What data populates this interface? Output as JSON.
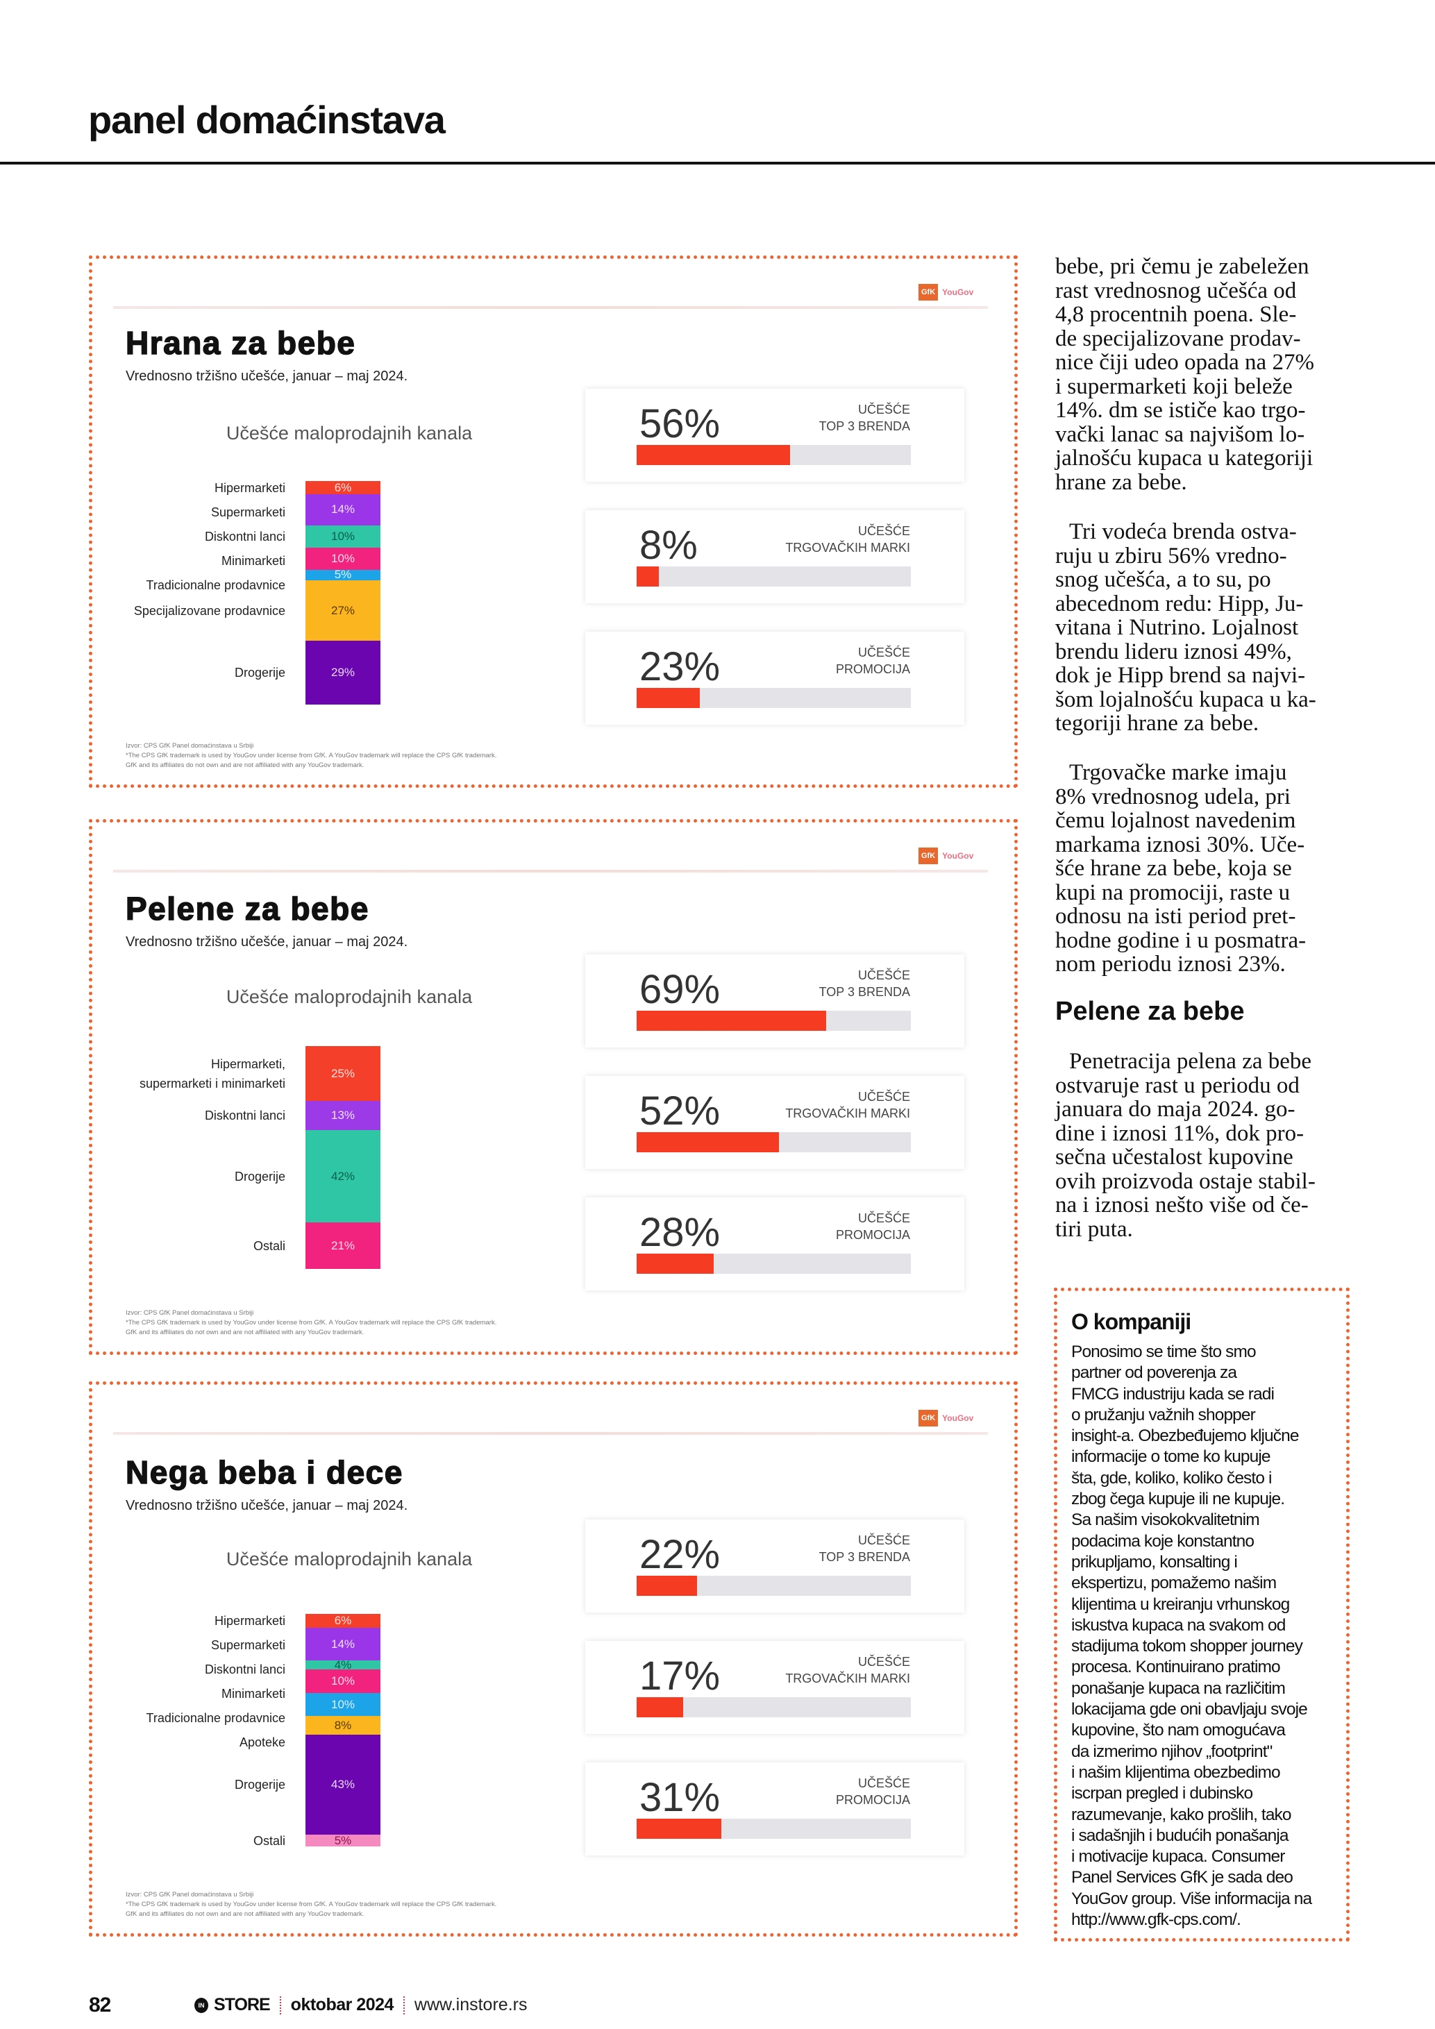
{
  "header": {
    "section_title": "panel domaćinstava"
  },
  "logo": {
    "gfk": "GfK",
    "yougov": "YouGov"
  },
  "colors": {
    "accent_orange": "#ef6330",
    "kpi_fill": "#f53c22",
    "kpi_track": "#e4e4e8"
  },
  "chart_data": [
    {
      "type": "bar",
      "stacked": true,
      "title": "Hrana za bebe",
      "subtitle": "Vrednosno tržišno učešće, januar – maj 2024.",
      "chart_title": "Učešće maloprodajnih kanala",
      "categories": [
        "Hipermarketi",
        "Supermarketi",
        "Diskontni lanci",
        "Minimarketi",
        "Tradicionalne prodavnice",
        "Specijalizovane prodavnice",
        "Drogerije"
      ],
      "values": [
        6,
        14,
        10,
        10,
        5,
        27,
        29
      ],
      "unit": "%",
      "colors": [
        "#f4402a",
        "#9a36e8",
        "#2fc6a6",
        "#f2237e",
        "#1ca3e8",
        "#fbb51f",
        "#6a05b0"
      ],
      "kpis": [
        {
          "value": 56,
          "label": [
            "UČEŠĆE",
            "TOP 3 BRENDA"
          ]
        },
        {
          "value": 8,
          "label": [
            "UČEŠĆE",
            "TRGOVAČKIH MARKI"
          ]
        },
        {
          "value": 23,
          "label": [
            "UČEŠĆE",
            "PROMOCIJA"
          ]
        }
      ],
      "footnotes": [
        "Izvor: CPS GfK Panel domaćinstava u Srbiji",
        "*The CPS GfK trademark is used by YouGov under license from GfK. A YouGov trademark will replace the CPS GfK trademark.",
        "GfK and its affiliates do not own and are not affiliated with any YouGov trademark."
      ]
    },
    {
      "type": "bar",
      "stacked": true,
      "title": "Pelene za bebe",
      "subtitle": "Vrednosno tržišno učešće, januar – maj 2024.",
      "chart_title": "Učešće maloprodajnih kanala",
      "categories": [
        "Hipermarketi,\nsupermarketi i minimarketi",
        "Diskontni lanci",
        "Drogerije",
        "Ostali"
      ],
      "values": [
        25,
        13,
        42,
        21
      ],
      "unit": "%",
      "colors": [
        "#f4402a",
        "#9b3ae6",
        "#2fc6a6",
        "#f2237e"
      ],
      "kpis": [
        {
          "value": 69,
          "label": [
            "UČEŠĆE",
            "TOP 3 BRENDA"
          ]
        },
        {
          "value": 52,
          "label": [
            "UČEŠĆE",
            "TRGOVAČKIH MARKI"
          ]
        },
        {
          "value": 28,
          "label": [
            "UČEŠĆE",
            "PROMOCIJA"
          ]
        }
      ],
      "footnotes": [
        "Izvor: CPS GfK Panel domaćinstava u Srbiji",
        "*The CPS GfK trademark is used by YouGov under license from GfK. A YouGov trademark will replace the CPS GfK trademark.",
        "GfK and its affiliates do not own and are not affiliated with any YouGov trademark."
      ]
    },
    {
      "type": "bar",
      "stacked": true,
      "title": "Nega beba i dece",
      "subtitle": "Vrednosno tržišno učešće, januar – maj 2024.",
      "chart_title": "Učešće maloprodajnih kanala",
      "categories": [
        "Hipermarketi",
        "Supermarketi",
        "Diskontni lanci",
        "Minimarketi",
        "Tradicionalne prodavnice",
        "Apoteke",
        "Drogerije",
        "Ostali"
      ],
      "values": [
        6,
        14,
        4,
        10,
        10,
        8,
        43,
        5
      ],
      "unit": "%",
      "colors": [
        "#f4402a",
        "#9a36e8",
        "#2fc6a6",
        "#f2237e",
        "#1ca3e8",
        "#fbb51f",
        "#6a05b0",
        "#f58ac0"
      ],
      "kpis": [
        {
          "value": 22,
          "label": [
            "UČEŠĆE",
            "TOP 3 BRENDA"
          ]
        },
        {
          "value": 17,
          "label": [
            "UČEŠĆE",
            "TRGOVAČKIH MARKI"
          ]
        },
        {
          "value": 31,
          "label": [
            "UČEŠĆE",
            "PROMOCIJA"
          ]
        }
      ],
      "footnotes": [
        "Izvor: CPS GfK Panel domaćinstava u Srbiji",
        "*The CPS GfK trademark is used by YouGov under license from GfK. A YouGov trademark will replace the CPS GfK trademark.",
        "GfK and its affiliates do not own and are not affiliated with any YouGov trademark."
      ]
    }
  ],
  "article": {
    "paragraphs": [
      [
        "bebe, pri čemu je zabeležen",
        "rast vrednosnog učešća od",
        "4,8 procentnih poena. Sle-",
        "de specijalizovane prodav-",
        "nice čiji udeo opada na 27%",
        "i supermarketi koji beleže",
        "14%. dm se ističe kao trgo-",
        "vački lanac sa najvišom lo-",
        "jalnošću kupaca u kategoriji",
        "hrane za bebe."
      ],
      [
        "Tri vodeća brenda ostva-",
        "ruju u zbiru 56% vredno-",
        "snog učešća, a to su, po",
        "abecednom redu: Hipp, Ju-",
        "vitana i Nutrino. Lojalnost",
        "brendu lideru iznosi 49%,",
        "dok je Hipp brend sa najvi-",
        "šom lojalnošću kupaca u ka-",
        "tegoriji hrane za bebe."
      ],
      [
        "Trgovačke marke imaju",
        "8% vrednosnog udela, pri",
        "čemu lojalnost navedenim",
        "markama iznosi 30%. Uče-",
        "šće hrane za bebe, koja se",
        "kupi na promociji, raste u",
        "odnosu na isti period pret-",
        "hodne godine i u posmatra-",
        "nom periodu iznosi 23%."
      ]
    ],
    "subheading": "Pelene za bebe",
    "paragraph_after": [
      "Penetracija pelena za bebe",
      "ostvaruje rast u periodu od",
      "januara do maja 2024. go-",
      "dine i iznosi 11%, dok pro-",
      "sečna učestalost kupovine",
      "ovih proizvoda ostaje stabil-",
      "na i iznosi nešto više od če-",
      "tiri puta."
    ]
  },
  "about": {
    "heading": "O kompaniji",
    "lines": [
      "Ponosimo se time što smo",
      "partner od poverenja za",
      "FMCG industriju kada se radi",
      "o pružanju važnih shopper",
      "insight-a. Obezbeđujemo ključne",
      "informacije o tome ko kupuje",
      "šta, gde, koliko, koliko često i",
      "zbog čega kupuje ili ne kupuje.",
      "Sa našim visokokvalitetnim",
      "podacima koje konstantno",
      "prikupljamo, konsalting i",
      "ekspertizu, pomažemo našim",
      "klijentima u kreiranju vrhunskog",
      "iskustva kupaca na svakom od",
      "stadijuma tokom shopper journey",
      "procesa. Kontinuirano pratimo",
      "ponašanje kupaca na različitim",
      "lokacijama gde oni obavljaju svoje",
      "kupovine, što nam omogućava",
      "da izmerimo njihov „footprint\"",
      "i našim klijentima obezbedimo",
      "iscrpan pregled i dubinsko",
      "razumevanje, kako prošlih, tako",
      "i sadašnjih i budućih ponašanja",
      "i motivacije kupaca. Consumer",
      "Panel Services GfK je sada deo",
      "YouGov group. Više informacija na",
      "http://www.gfk-cps.com/."
    ]
  },
  "footer": {
    "page_number": "82",
    "in_logo": "IN",
    "brand": "STORE",
    "issue": "oktobar 2024",
    "website": "www.instore.rs"
  }
}
